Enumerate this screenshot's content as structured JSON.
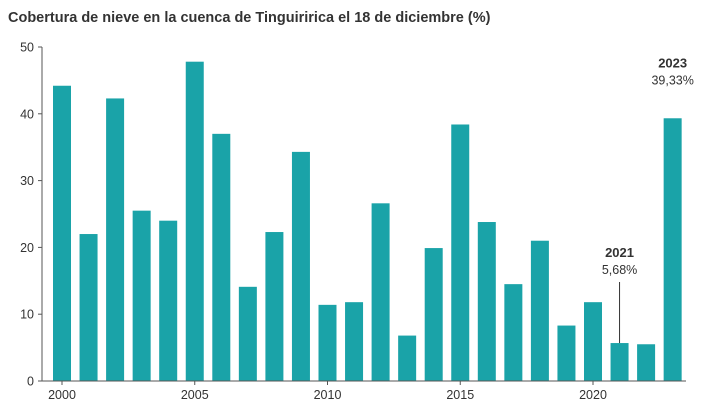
{
  "chart_data": {
    "type": "bar",
    "title": "Cobertura de nieve en la cuenca de Tinguiririca el 18 de diciembre (%)",
    "xlabel": "",
    "ylabel": "",
    "categories": [
      "2000",
      "2001",
      "2002",
      "2003",
      "2004",
      "2005",
      "2006",
      "2007",
      "2008",
      "2009",
      "2010",
      "2011",
      "2012",
      "2013",
      "2014",
      "2015",
      "2016",
      "2017",
      "2018",
      "2019",
      "2020",
      "2021",
      "2022",
      "2023"
    ],
    "values": [
      44.2,
      22.0,
      42.3,
      25.5,
      24.0,
      47.8,
      37.0,
      14.1,
      22.3,
      34.3,
      11.4,
      11.8,
      26.6,
      6.8,
      19.9,
      38.4,
      23.8,
      14.5,
      21.0,
      8.3,
      11.8,
      5.68,
      5.5,
      39.33
    ],
    "ylim": [
      0,
      50
    ],
    "yticks": [
      0,
      10,
      20,
      30,
      40,
      50
    ],
    "xtick_labels": [
      "2000",
      "2005",
      "2010",
      "2015",
      "2020"
    ],
    "grid": false,
    "bar_color": "#1aa3a8",
    "annotations": [
      {
        "year": "2021",
        "label": "5,68%"
      },
      {
        "year": "2023",
        "label": "39,33%"
      }
    ]
  }
}
